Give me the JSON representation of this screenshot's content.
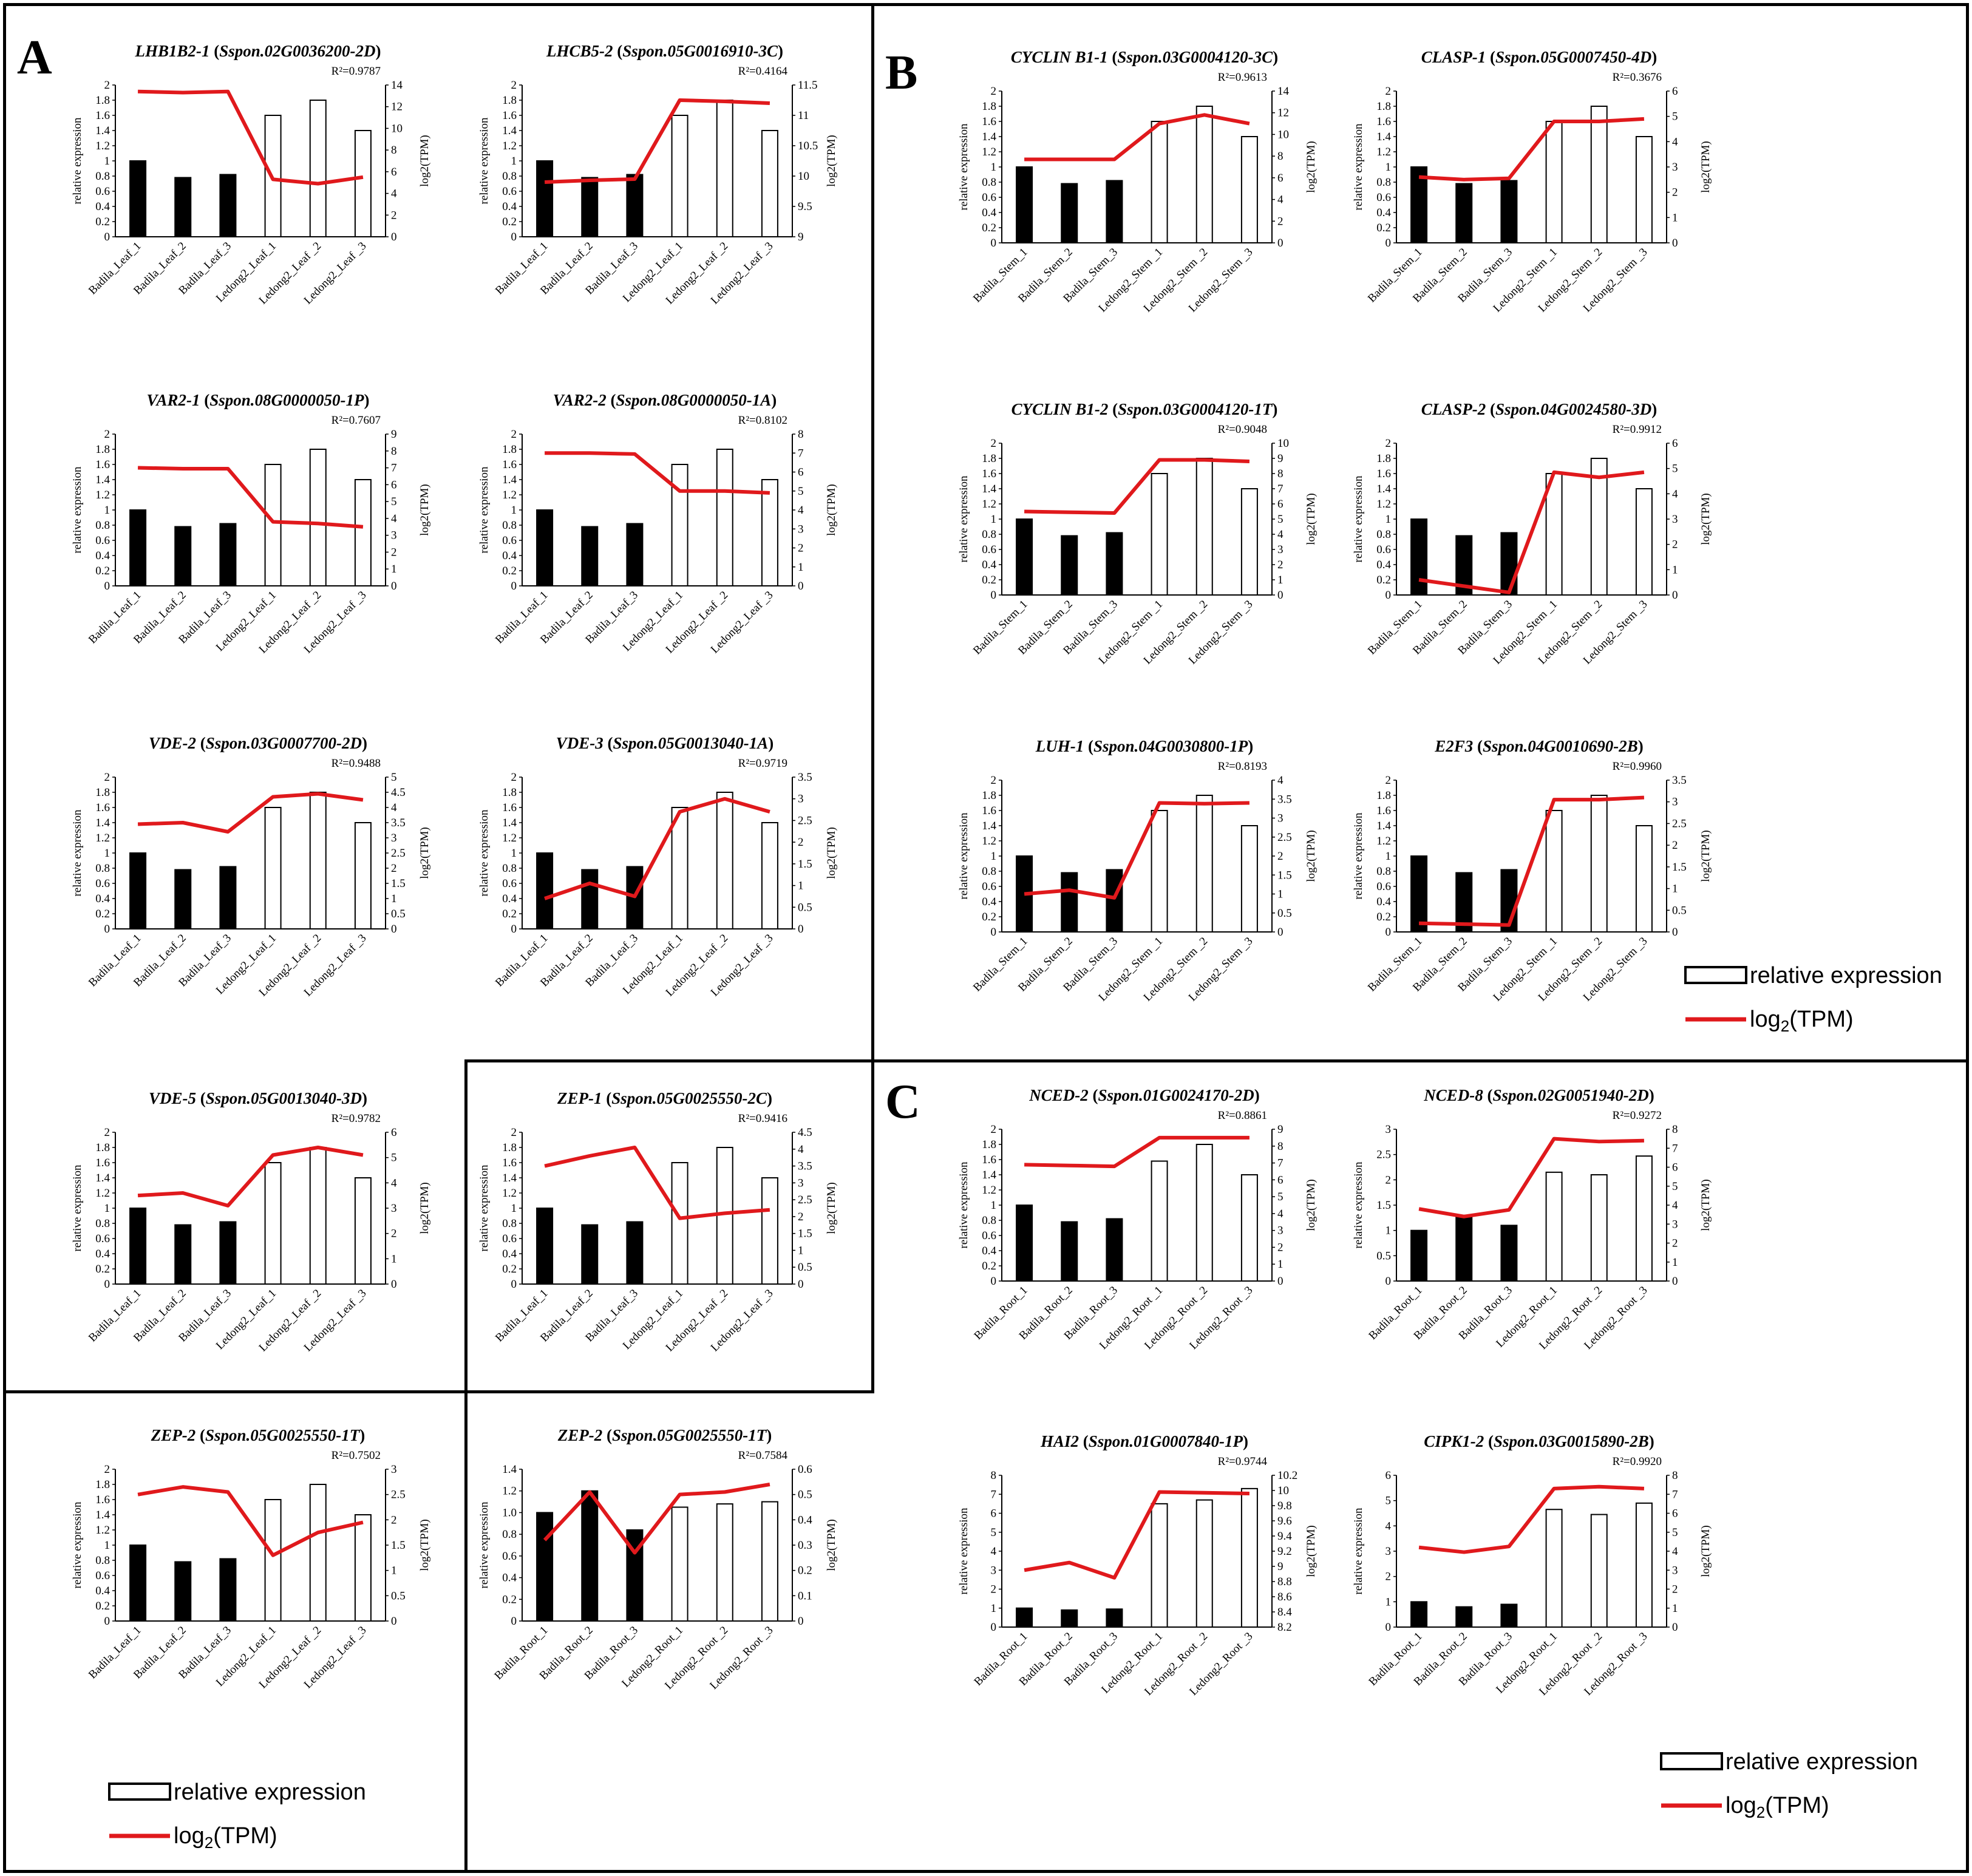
{
  "panels": {
    "A": "A",
    "B": "B",
    "C": "C"
  },
  "legend": {
    "bar_label": "relative expression",
    "line_label": "log2 (TPM)",
    "line_label_main": "log",
    "line_label_sub": "2",
    "line_label_rest": "(TPM)"
  },
  "colors": {
    "line": "#e0191c",
    "bar_filled": "#000000",
    "bar_open": "#ffffff"
  },
  "y_left_label": "relative expression",
  "y_right_label": "log2(TPM)",
  "chart_data": [
    {
      "type": "bar",
      "title": "LHB1B2-1",
      "gene_id": "Sspon.02G0036200-2D",
      "r2": "R²=0.9787",
      "categories": [
        "Badila_Leaf_1",
        "Badila_Leaf_2",
        "Badila_Leaf_3",
        "Ledong2_Leaf_1",
        "Ledong2_Leaf _2",
        "Ledong2_Leaf _3"
      ],
      "values": [
        1,
        0.78,
        0.82,
        1.6,
        1.8,
        1.4
      ],
      "ylim": [
        0,
        2
      ],
      "yticks": [
        "0",
        "0.2",
        "0.4",
        "0.6",
        "0.8",
        "1",
        "1.2",
        "1.4",
        "1.6",
        "1.8",
        "2"
      ],
      "line": [
        13.4,
        13.3,
        13.4,
        5.3,
        4.9,
        5.5
      ],
      "y2lim": [
        0,
        14
      ],
      "y2ticks": [
        "0",
        "2",
        "4",
        "6",
        "8",
        "10",
        "12",
        "14"
      ]
    },
    {
      "type": "bar",
      "title": "LHCB5-2",
      "gene_id": "Sspon.05G0016910-3C",
      "r2": "R²=0.4164",
      "categories": [
        "Badila_Leaf_1",
        "Badila_Leaf_2",
        "Badila_Leaf_3",
        "Ledong2_Leaf_1",
        "Ledong2_Leaf _2",
        "Ledong2_Leaf _3"
      ],
      "values": [
        1,
        0.78,
        0.82,
        1.6,
        1.8,
        1.4
      ],
      "ylim": [
        0,
        2
      ],
      "yticks": [
        "0",
        "0.2",
        "0.4",
        "0.6",
        "0.8",
        "1",
        "1.2",
        "1.4",
        "1.6",
        "1.8",
        "2"
      ],
      "line": [
        9.9,
        9.93,
        9.95,
        11.25,
        11.23,
        11.2
      ],
      "y2lim": [
        9,
        11.5
      ],
      "y2ticks": [
        "9",
        "9.5",
        "10",
        "10.5",
        "11",
        "11.5"
      ]
    },
    {
      "type": "bar",
      "title": "VAR2-1",
      "gene_id": "Sspon.08G0000050-1P",
      "r2": "R²=0.7607",
      "categories": [
        "Badila_Leaf_1",
        "Badila_Leaf_2",
        "Badila_Leaf_3",
        "Ledong2_Leaf_1",
        "Ledong2_Leaf _2",
        "Ledong2_Leaf _3"
      ],
      "values": [
        1,
        0.78,
        0.82,
        1.6,
        1.8,
        1.4
      ],
      "ylim": [
        0,
        2
      ],
      "yticks": [
        "0",
        "0.2",
        "0.4",
        "0.6",
        "0.8",
        "1",
        "1.2",
        "1.4",
        "1.6",
        "1.8",
        "2"
      ],
      "line": [
        7.0,
        6.95,
        6.95,
        3.8,
        3.7,
        3.5
      ],
      "y2lim": [
        0,
        9
      ],
      "y2ticks": [
        "0",
        "1",
        "2",
        "3",
        "4",
        "5",
        "6",
        "7",
        "8",
        "9"
      ]
    },
    {
      "type": "bar",
      "title": "VAR2-2",
      "gene_id": "Sspon.08G0000050-1A",
      "r2": "R²=0.8102",
      "categories": [
        "Badila_Leaf_1",
        "Badila_Leaf_2",
        "Badila_Leaf_3",
        "Ledong2_Leaf_1",
        "Ledong2_Leaf _2",
        "Ledong2_Leaf _3"
      ],
      "values": [
        1,
        0.78,
        0.82,
        1.6,
        1.8,
        1.4
      ],
      "ylim": [
        0,
        2
      ],
      "yticks": [
        "0",
        "0.2",
        "0.4",
        "0.6",
        "0.8",
        "1",
        "1.2",
        "1.4",
        "1.6",
        "1.8",
        "2"
      ],
      "line": [
        7.0,
        7.0,
        6.95,
        5.0,
        5.0,
        4.9
      ],
      "y2lim": [
        0,
        8
      ],
      "y2ticks": [
        "0",
        "1",
        "2",
        "3",
        "4",
        "5",
        "6",
        "7",
        "8"
      ]
    },
    {
      "type": "bar",
      "title": "VDE-2",
      "gene_id": "Sspon.03G0007700-2D",
      "r2": "R²=0.9488",
      "categories": [
        "Badila_Leaf_1",
        "Badila_Leaf_2",
        "Badila_Leaf_3",
        "Ledong2_Leaf_1",
        "Ledong2_Leaf _2",
        "Ledong2_Leaf _3"
      ],
      "values": [
        1,
        0.78,
        0.82,
        1.6,
        1.8,
        1.4
      ],
      "ylim": [
        0,
        2
      ],
      "yticks": [
        "0",
        "0.2",
        "0.4",
        "0.6",
        "0.8",
        "1",
        "1.2",
        "1.4",
        "1.6",
        "1.8",
        "2"
      ],
      "line": [
        3.45,
        3.5,
        3.2,
        4.35,
        4.45,
        4.25
      ],
      "y2lim": [
        0,
        5
      ],
      "y2ticks": [
        "0",
        "0.5",
        "1",
        "1.5",
        "2",
        "2.5",
        "3",
        "3.5",
        "4",
        "4.5",
        "5"
      ]
    },
    {
      "type": "bar",
      "title": "VDE-3",
      "gene_id": "Sspon.05G0013040-1A",
      "r2": "R²=0.9719",
      "categories": [
        "Badila_Leaf_1",
        "Badila_Leaf_2",
        "Badila_Leaf_3",
        "Ledong2_Leaf_1",
        "Ledong2_Leaf _2",
        "Ledong2_Leaf _3"
      ],
      "values": [
        1,
        0.78,
        0.82,
        1.6,
        1.8,
        1.4
      ],
      "ylim": [
        0,
        2
      ],
      "yticks": [
        "0",
        "0.2",
        "0.4",
        "0.6",
        "0.8",
        "1",
        "1.2",
        "1.4",
        "1.6",
        "1.8",
        "2"
      ],
      "line": [
        0.7,
        1.05,
        0.75,
        2.7,
        3.0,
        2.7
      ],
      "y2lim": [
        0,
        3.5
      ],
      "y2ticks": [
        "0",
        "0.5",
        "1",
        "1.5",
        "2",
        "2.5",
        "3",
        "3.5"
      ]
    },
    {
      "type": "bar",
      "title": "VDE-5",
      "gene_id": "Sspon.05G0013040-3D",
      "r2": "R²=0.9782",
      "categories": [
        "Badila_Leaf_1",
        "Badila_Leaf_2",
        "Badila_Leaf_3",
        "Ledong2_Leaf_1",
        "Ledong2_Leaf _2",
        "Ledong2_Leaf _3"
      ],
      "values": [
        1,
        0.78,
        0.82,
        1.6,
        1.8,
        1.4
      ],
      "ylim": [
        0,
        2
      ],
      "yticks": [
        "0",
        "0.2",
        "0.4",
        "0.6",
        "0.8",
        "1",
        "1.2",
        "1.4",
        "1.6",
        "1.8",
        "2"
      ],
      "line": [
        3.5,
        3.6,
        3.1,
        5.1,
        5.4,
        5.1
      ],
      "y2lim": [
        0,
        6
      ],
      "y2ticks": [
        "0",
        "1",
        "2",
        "3",
        "4",
        "5",
        "6"
      ]
    },
    {
      "type": "bar",
      "title": "ZEP-1",
      "gene_id": "Sspon.05G0025550-2C",
      "r2": "R²=0.9416",
      "categories": [
        "Badila_Leaf_1",
        "Badila_Leaf_2",
        "Badila_Leaf_3",
        "Ledong2_Leaf_1",
        "Ledong2_Leaf _2",
        "Ledong2_Leaf _3"
      ],
      "values": [
        1,
        0.78,
        0.82,
        1.6,
        1.8,
        1.4
      ],
      "ylim": [
        0,
        2
      ],
      "yticks": [
        "0",
        "0.2",
        "0.4",
        "0.6",
        "0.8",
        "1",
        "1.2",
        "1.4",
        "1.6",
        "1.8",
        "2"
      ],
      "line": [
        3.5,
        3.8,
        4.05,
        1.95,
        2.1,
        2.2
      ],
      "y2lim": [
        0,
        4.5
      ],
      "y2ticks": [
        "0",
        "0.5",
        "1",
        "1.5",
        "2",
        "2.5",
        "3",
        "3.5",
        "4",
        "4.5"
      ]
    },
    {
      "type": "bar",
      "title": "ZEP-2",
      "gene_id": "Sspon.05G0025550-1T",
      "r2": "R²=0.7502",
      "categories": [
        "Badila_Leaf_1",
        "Badila_Leaf_2",
        "Badila_Leaf_3",
        "Ledong2_Leaf_1",
        "Ledong2_Leaf _2",
        "Ledong2_Leaf _3"
      ],
      "values": [
        1,
        0.78,
        0.82,
        1.6,
        1.8,
        1.4
      ],
      "ylim": [
        0,
        2
      ],
      "yticks": [
        "0",
        "0.2",
        "0.4",
        "0.6",
        "0.8",
        "1",
        "1.2",
        "1.4",
        "1.6",
        "1.8",
        "2"
      ],
      "line": [
        2.5,
        2.65,
        2.55,
        1.3,
        1.75,
        1.95
      ],
      "y2lim": [
        0,
        3
      ],
      "y2ticks": [
        "0",
        "0.5",
        "1",
        "1.5",
        "2",
        "2.5",
        "3"
      ]
    },
    {
      "type": "bar",
      "title": "ZEP-2",
      "gene_id": "Sspon.05G0025550-1T",
      "r2": "R²=0.7584",
      "categories": [
        "Badila_Root_1",
        "Badila_Root_2",
        "Badila_Root_3",
        "Ledong2_Root_1",
        "Ledong2_Root _2",
        "Ledong2_Root _3"
      ],
      "values": [
        1.0,
        1.2,
        0.84,
        1.05,
        1.08,
        1.1
      ],
      "ylim": [
        0,
        1.4
      ],
      "yticks": [
        "0",
        "0.2",
        "0.4",
        "0.6",
        "0.8",
        "1.0",
        "1.2",
        "1.4"
      ],
      "line": [
        0.32,
        0.51,
        0.27,
        0.5,
        0.51,
        0.54
      ],
      "y2lim": [
        0,
        0.6
      ],
      "y2ticks": [
        "0",
        "0.1",
        "0.2",
        "0.3",
        "0.4",
        "0.5",
        "0.6"
      ]
    },
    {
      "type": "bar",
      "title": "CYCLIN B1-1",
      "gene_id": "Sspon.03G0004120-3C",
      "r2": "R²=0.9613",
      "categories": [
        "Badila_Stem_1",
        "Badila_Stem_2",
        "Badila_Stem_3",
        "Ledong2_Stem _1",
        "Ledong2_Stem _2",
        "Ledong2_Stem _3"
      ],
      "values": [
        1,
        0.78,
        0.82,
        1.6,
        1.8,
        1.4
      ],
      "ylim": [
        0,
        2
      ],
      "yticks": [
        "0",
        "0.2",
        "0.4",
        "0.6",
        "0.8",
        "1",
        "1.2",
        "1.4",
        "1.6",
        "1.8",
        "2"
      ],
      "line": [
        7.7,
        7.7,
        7.7,
        11.0,
        11.8,
        11.0
      ],
      "y2lim": [
        0,
        14
      ],
      "y2ticks": [
        "0",
        "2",
        "4",
        "6",
        "8",
        "10",
        "12",
        "14"
      ]
    },
    {
      "type": "bar",
      "title": "CLASP-1",
      "gene_id": "Sspon.05G0007450-4D",
      "r2": "R²=0.3676",
      "categories": [
        "Badila_Stem_1",
        "Badila_Stem_2",
        "Badila_Stem_3",
        "Ledong2_Stem _1",
        "Ledong2_Stem _2",
        "Ledong2_Stem _3"
      ],
      "values": [
        1,
        0.78,
        0.82,
        1.6,
        1.8,
        1.4
      ],
      "ylim": [
        0,
        2
      ],
      "yticks": [
        "0",
        "0.2",
        "0.4",
        "0.6",
        "0.8",
        "1",
        "1.2",
        "1.4",
        "1.6",
        "1.8",
        "2"
      ],
      "line": [
        2.6,
        2.5,
        2.55,
        4.8,
        4.8,
        4.9
      ],
      "y2lim": [
        0,
        6
      ],
      "y2ticks": [
        "0",
        "1",
        "2",
        "3",
        "4",
        "5",
        "6"
      ]
    },
    {
      "type": "bar",
      "title": "CYCLIN B1-2",
      "gene_id": "Sspon.03G0004120-1T",
      "r2": "R²=0.9048",
      "categories": [
        "Badila_Stem_1",
        "Badila_Stem_2",
        "Badila_Stem_3",
        "Ledong2_Stem _1",
        "Ledong2_Stem _2",
        "Ledong2_Stem _3"
      ],
      "values": [
        1,
        0.78,
        0.82,
        1.6,
        1.8,
        1.4
      ],
      "ylim": [
        0,
        2
      ],
      "yticks": [
        "0",
        "0.2",
        "0.4",
        "0.6",
        "0.8",
        "1",
        "1.2",
        "1.4",
        "1.6",
        "1.8",
        "2"
      ],
      "line": [
        5.5,
        5.45,
        5.4,
        8.9,
        8.9,
        8.8
      ],
      "y2lim": [
        0,
        10
      ],
      "y2ticks": [
        "0",
        "1",
        "2",
        "3",
        "4",
        "5",
        "6",
        "7",
        "8",
        "9",
        "10"
      ]
    },
    {
      "type": "bar",
      "title": "CLASP-2",
      "gene_id": "Sspon.04G0024580-3D",
      "r2": "R²=0.9912",
      "categories": [
        "Badila_Stem_1",
        "Badila_Stem_2",
        "Badila_Stem_3",
        "Ledong2_Stem _1",
        "Ledong2_Stem _2",
        "Ledong2_Stem _3"
      ],
      "values": [
        1,
        0.78,
        0.82,
        1.6,
        1.8,
        1.4
      ],
      "ylim": [
        0,
        2
      ],
      "yticks": [
        "0",
        "0.2",
        "0.4",
        "0.6",
        "0.8",
        "1",
        "1.2",
        "1.4",
        "1.6",
        "1.8",
        "2"
      ],
      "line": [
        0.6,
        0.35,
        0.1,
        4.85,
        4.65,
        4.85
      ],
      "y2lim": [
        0,
        6
      ],
      "y2ticks": [
        "0",
        "1",
        "2",
        "3",
        "4",
        "5",
        "6"
      ]
    },
    {
      "type": "bar",
      "title": "LUH-1",
      "gene_id": "Sspon.04G0030800-1P",
      "r2": "R²=0.8193",
      "categories": [
        "Badila_Stem_1",
        "Badila_Stem_2",
        "Badila_Stem_3",
        "Ledong2_Stem _1",
        "Ledong2_Stem _2",
        "Ledong2_Stem _3"
      ],
      "values": [
        1,
        0.78,
        0.82,
        1.6,
        1.8,
        1.4
      ],
      "ylim": [
        0,
        2
      ],
      "yticks": [
        "0",
        "0.2",
        "0.4",
        "0.6",
        "0.8",
        "1",
        "1.2",
        "1.4",
        "1.6",
        "1.8",
        "2"
      ],
      "line": [
        1.0,
        1.1,
        0.9,
        3.4,
        3.38,
        3.4
      ],
      "y2lim": [
        0,
        4
      ],
      "y2ticks": [
        "0",
        "0.5",
        "1",
        "1.5",
        "2",
        "2.5",
        "3",
        "3.5",
        "4"
      ]
    },
    {
      "type": "bar",
      "title": "E2F3",
      "gene_id": "Sspon.04G0010690-2B",
      "r2": "R²=0.9960",
      "categories": [
        "Badila_Stem_1",
        "Badila_Stem_2",
        "Badila_Stem_3",
        "Ledong2_Stem _1",
        "Ledong2_Stem _2",
        "Ledong2_Stem _3"
      ],
      "values": [
        1,
        0.78,
        0.82,
        1.6,
        1.8,
        1.4
      ],
      "ylim": [
        0,
        2
      ],
      "yticks": [
        "0",
        "0.2",
        "0.4",
        "0.6",
        "0.8",
        "1",
        "1.2",
        "1.4",
        "1.6",
        "1.8",
        "2"
      ],
      "line": [
        0.2,
        0.18,
        0.16,
        3.05,
        3.05,
        3.1
      ],
      "y2lim": [
        0,
        3.5
      ],
      "y2ticks": [
        "0",
        "0.5",
        "1",
        "1.5",
        "2",
        "2.5",
        "3",
        "3.5"
      ]
    },
    {
      "type": "bar",
      "title": "NCED-2",
      "gene_id": "Sspon.01G0024170-2D",
      "r2": "R²=0.8861",
      "categories": [
        "Badila_Root_1",
        "Badila_Root_2",
        "Badila_Root_3",
        "Ledong2_Root _1",
        "Ledong2_Root _2",
        "Ledong2_Root _3"
      ],
      "values": [
        1,
        0.78,
        0.82,
        1.58,
        1.8,
        1.4
      ],
      "ylim": [
        0,
        2
      ],
      "yticks": [
        "0",
        "0.2",
        "0.4",
        "0.6",
        "0.8",
        "1",
        "1.2",
        "1.4",
        "1.6",
        "1.8",
        "2"
      ],
      "line": [
        6.9,
        6.85,
        6.8,
        8.5,
        8.5,
        8.5
      ],
      "y2lim": [
        0,
        9
      ],
      "y2ticks": [
        "0",
        "1",
        "2",
        "3",
        "4",
        "5",
        "6",
        "7",
        "8",
        "9"
      ]
    },
    {
      "type": "bar",
      "title": "NCED-8",
      "gene_id": "Sspon.02G0051940-2D",
      "r2": "R²=0.9272",
      "categories": [
        "Badila_Root_1",
        "Badila_Root_2",
        "Badila_Root_3",
        "Ledong2_Root_1",
        "Ledong2_Root _2",
        "Ledong2_Root _3"
      ],
      "values": [
        1,
        1.28,
        1.1,
        2.15,
        2.1,
        2.47
      ],
      "ylim": [
        0,
        3
      ],
      "yticks": [
        "0",
        "0.5",
        "1",
        "1.5",
        "2",
        "2.5",
        "3"
      ],
      "line": [
        3.8,
        3.4,
        3.75,
        7.5,
        7.35,
        7.4
      ],
      "y2lim": [
        0,
        8
      ],
      "y2ticks": [
        "0",
        "1",
        "2",
        "3",
        "4",
        "5",
        "6",
        "7",
        "8"
      ]
    },
    {
      "type": "bar",
      "title": "HAI2",
      "gene_id": "Sspon.01G0007840-1P",
      "r2": "R²=0.9744",
      "categories": [
        "Badila_Root_1",
        "Badila_Root_2",
        "Badila_Root_3",
        "Ledong2_Root_1",
        "Ledong2_Root _2",
        "Ledong2_Root _3"
      ],
      "values": [
        1,
        0.9,
        0.95,
        6.5,
        6.7,
        7.3
      ],
      "ylim": [
        0,
        8
      ],
      "yticks": [
        "0",
        "1",
        "2",
        "3",
        "4",
        "5",
        "6",
        "7",
        "8"
      ],
      "line": [
        8.95,
        9.05,
        8.85,
        9.98,
        9.97,
        9.96
      ],
      "y2lim": [
        8.2,
        10.2
      ],
      "y2ticks": [
        "8.2",
        "8.4",
        "8.6",
        "8.8",
        "9",
        "9.2",
        "9.4",
        "9.6",
        "9.8",
        "10",
        "10.2"
      ]
    },
    {
      "type": "bar",
      "title": "CIPK1-2",
      "gene_id": "Sspon.03G0015890-2B",
      "r2": "R²=0.9920",
      "categories": [
        "Badila_Root_1",
        "Badila_Root_2",
        "Badila_Root_3",
        "Ledong2_Root_1",
        "Ledong2_Root _2",
        "Ledong2_Root _3"
      ],
      "values": [
        1,
        0.8,
        0.9,
        4.65,
        4.45,
        4.9
      ],
      "ylim": [
        0,
        6
      ],
      "yticks": [
        "0",
        "1",
        "2",
        "3",
        "4",
        "5",
        "6"
      ],
      "line": [
        4.2,
        3.95,
        4.25,
        7.3,
        7.4,
        7.3
      ],
      "y2lim": [
        0,
        8
      ],
      "y2ticks": [
        "0",
        "1",
        "2",
        "3",
        "4",
        "5",
        "6",
        "7",
        "8"
      ]
    }
  ]
}
